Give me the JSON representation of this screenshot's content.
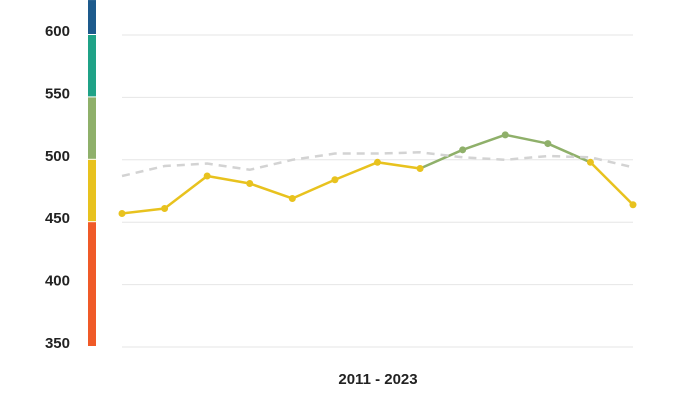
{
  "chart_data": {
    "type": "line",
    "x_label": "2011 - 2023",
    "ylim": [
      350,
      628
    ],
    "yticks": [
      350,
      400,
      450,
      500,
      550,
      600
    ],
    "grid": true,
    "band_thresholds": [
      450,
      500,
      550,
      600
    ],
    "band_colors": [
      "#f05a28",
      "#e8c21e",
      "#8fb06a",
      "#1fa287",
      "#1d5a8c"
    ],
    "series": [
      {
        "values": [
          457,
          461,
          487,
          481,
          469,
          484,
          498,
          493,
          508,
          520,
          513,
          498,
          464
        ],
        "style": "solid",
        "color_by_band": true
      },
      {
        "values": [
          487,
          495,
          497,
          492,
          500,
          505,
          505,
          506,
          502,
          500,
          503,
          502,
          494
        ],
        "style": "dashed",
        "color": "#d3d3d3"
      }
    ]
  }
}
